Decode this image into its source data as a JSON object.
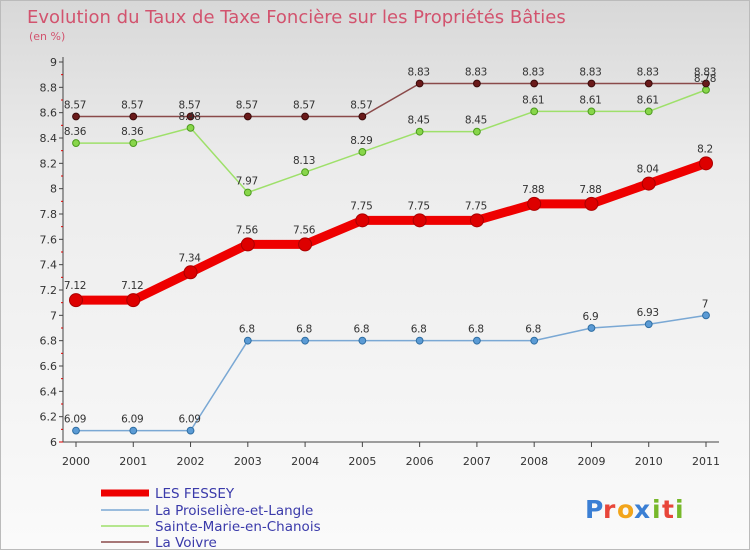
{
  "chart_data": {
    "type": "line",
    "title": "Evolution du Taux de Taxe Foncière sur les Propriétés Bâties",
    "subtitle": "(en %)",
    "xlabel": "",
    "ylabel": "",
    "categories": [
      "2000",
      "2001",
      "2002",
      "2003",
      "2004",
      "2005",
      "2006",
      "2007",
      "2008",
      "2009",
      "2010",
      "2011"
    ],
    "ylim": [
      6,
      9
    ],
    "yticks": [
      "6",
      "6.2",
      "6.4",
      "6.6",
      "6.8",
      "7",
      "7.2",
      "7.4",
      "7.6",
      "7.8",
      "8",
      "8.2",
      "8.4",
      "8.6",
      "8.8",
      "9"
    ],
    "series": [
      {
        "name": "LES FESSEY",
        "color": "#ee0000",
        "values": [
          7.12,
          7.12,
          7.34,
          7.56,
          7.56,
          7.75,
          7.75,
          7.75,
          7.88,
          7.88,
          8.04,
          8.2
        ],
        "labels": [
          "7.12",
          "7.12",
          "7.34",
          "7.56",
          "7.56",
          "7.75",
          "7.75",
          "7.75",
          "7.88",
          "7.88",
          "8.04",
          "8.2"
        ]
      },
      {
        "name": "La Proiselière-et-Langle",
        "color": "#6a9ecb",
        "values": [
          6.09,
          6.09,
          6.09,
          6.8,
          6.8,
          6.8,
          6.8,
          6.8,
          6.8,
          6.9,
          6.93,
          7
        ],
        "labels": [
          "6.09",
          "6.09",
          "6.09",
          "6.8",
          "6.8",
          "6.8",
          "6.8",
          "6.8",
          "6.8",
          "6.9",
          "6.93",
          "7"
        ]
      },
      {
        "name": "Sainte-Marie-en-Chanois",
        "color": "#99dd66",
        "values": [
          8.36,
          8.36,
          8.48,
          7.97,
          8.13,
          8.29,
          8.45,
          8.45,
          8.61,
          8.61,
          8.61,
          8.78
        ],
        "labels": [
          "8.36",
          "8.36",
          "8.48",
          "7.97",
          "8.13",
          "8.29",
          "8.45",
          "8.45",
          "8.61",
          "8.61",
          "8.61",
          "8.78"
        ]
      },
      {
        "name": "La Voivre",
        "color": "#884444",
        "values": [
          8.57,
          8.57,
          8.57,
          8.57,
          8.57,
          8.57,
          8.83,
          8.83,
          8.83,
          8.83,
          8.83,
          8.83
        ],
        "labels": [
          "8.57",
          "8.57",
          "8.57",
          "8.57",
          "8.57",
          "8.57",
          "8.83",
          "8.83",
          "8.83",
          "8.83",
          "8.83",
          "8.83"
        ]
      }
    ]
  },
  "logo": {
    "letters": [
      "P",
      "r",
      "o",
      "x",
      "i",
      "t",
      "i"
    ],
    "colors": [
      "#3b7fd4",
      "#e8463a",
      "#f2a51b",
      "#3b7fd4",
      "#77b82a",
      "#e8463a",
      "#77b82a"
    ]
  }
}
